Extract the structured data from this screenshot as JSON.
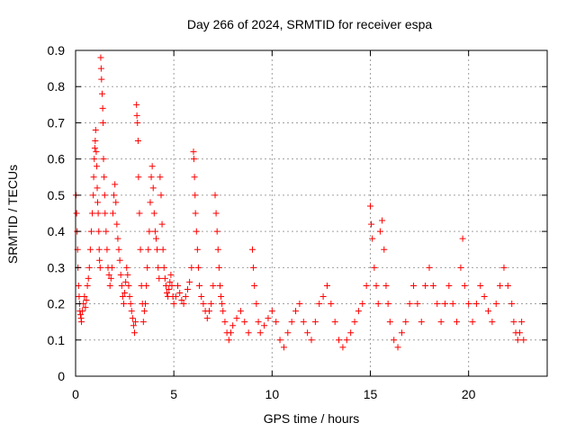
{
  "chart_data": {
    "type": "scatter",
    "title": "Day 266 of 2024, SRMTID for receiver espa",
    "xlabel": "GPS time / hours",
    "ylabel": "SRMTID / TECUs",
    "xlim": [
      0,
      24
    ],
    "ylim": [
      0,
      0.9
    ],
    "x_ticks": [
      0,
      5,
      10,
      15,
      20
    ],
    "x_tick_labels": [
      "0",
      "5",
      "10",
      "15",
      "20"
    ],
    "y_ticks": [
      0,
      0.1,
      0.2,
      0.3,
      0.4,
      0.5,
      0.6,
      0.7,
      0.8,
      0.9
    ],
    "y_tick_labels": [
      "0",
      "0.1",
      "0.2",
      "0.3",
      "0.4",
      "0.5",
      "0.6",
      "0.7",
      "0.8",
      "0.9"
    ],
    "grid": true,
    "marker": "+",
    "color": "#ff0000",
    "series": [
      {
        "name": "SRMTID",
        "points": [
          [
            0.02,
            0.5
          ],
          [
            0.05,
            0.45
          ],
          [
            0.08,
            0.4
          ],
          [
            0.1,
            0.35
          ],
          [
            0.12,
            0.3
          ],
          [
            0.15,
            0.25
          ],
          [
            0.18,
            0.22
          ],
          [
            0.2,
            0.2
          ],
          [
            0.22,
            0.18
          ],
          [
            0.25,
            0.17
          ],
          [
            0.28,
            0.16
          ],
          [
            0.3,
            0.15
          ],
          [
            0.35,
            0.18
          ],
          [
            0.4,
            0.2
          ],
          [
            0.45,
            0.22
          ],
          [
            0.5,
            0.19
          ],
          [
            0.55,
            0.21
          ],
          [
            0.6,
            0.25
          ],
          [
            0.65,
            0.27
          ],
          [
            0.7,
            0.3
          ],
          [
            0.75,
            0.35
          ],
          [
            0.8,
            0.4
          ],
          [
            0.85,
            0.45
          ],
          [
            0.9,
            0.5
          ],
          [
            0.92,
            0.55
          ],
          [
            0.95,
            0.6
          ],
          [
            0.98,
            0.63
          ],
          [
            1.0,
            0.65
          ],
          [
            1.02,
            0.68
          ],
          [
            1.05,
            0.62
          ],
          [
            1.08,
            0.58
          ],
          [
            1.1,
            0.52
          ],
          [
            1.12,
            0.48
          ],
          [
            1.15,
            0.45
          ],
          [
            1.18,
            0.4
          ],
          [
            1.2,
            0.35
          ],
          [
            1.22,
            0.32
          ],
          [
            1.25,
            0.3
          ],
          [
            1.28,
            0.88
          ],
          [
            1.3,
            0.85
          ],
          [
            1.32,
            0.82
          ],
          [
            1.35,
            0.78
          ],
          [
            1.38,
            0.74
          ],
          [
            1.4,
            0.7
          ],
          [
            1.42,
            0.6
          ],
          [
            1.45,
            0.55
          ],
          [
            1.48,
            0.5
          ],
          [
            1.5,
            0.45
          ],
          [
            1.55,
            0.4
          ],
          [
            1.6,
            0.35
          ],
          [
            1.65,
            0.3
          ],
          [
            1.7,
            0.28
          ],
          [
            1.75,
            0.25
          ],
          [
            1.8,
            0.27
          ],
          [
            1.85,
            0.3
          ],
          [
            1.9,
            0.45
          ],
          [
            1.95,
            0.5
          ],
          [
            2.0,
            0.53
          ],
          [
            2.05,
            0.48
          ],
          [
            2.1,
            0.42
          ],
          [
            2.15,
            0.38
          ],
          [
            2.2,
            0.35
          ],
          [
            2.25,
            0.32
          ],
          [
            2.3,
            0.28
          ],
          [
            2.35,
            0.25
          ],
          [
            2.4,
            0.22
          ],
          [
            2.45,
            0.2
          ],
          [
            2.5,
            0.23
          ],
          [
            2.55,
            0.26
          ],
          [
            2.6,
            0.3
          ],
          [
            2.65,
            0.28
          ],
          [
            2.7,
            0.25
          ],
          [
            2.75,
            0.22
          ],
          [
            2.8,
            0.2
          ],
          [
            2.85,
            0.18
          ],
          [
            2.9,
            0.16
          ],
          [
            2.95,
            0.14
          ],
          [
            3.0,
            0.12
          ],
          [
            3.05,
            0.15
          ],
          [
            3.1,
            0.75
          ],
          [
            3.12,
            0.72
          ],
          [
            3.15,
            0.7
          ],
          [
            3.18,
            0.65
          ],
          [
            3.2,
            0.55
          ],
          [
            3.25,
            0.45
          ],
          [
            3.3,
            0.35
          ],
          [
            3.35,
            0.25
          ],
          [
            3.4,
            0.2
          ],
          [
            3.45,
            0.15
          ],
          [
            3.5,
            0.18
          ],
          [
            3.55,
            0.2
          ],
          [
            3.6,
            0.25
          ],
          [
            3.65,
            0.3
          ],
          [
            3.7,
            0.35
          ],
          [
            3.75,
            0.4
          ],
          [
            3.8,
            0.48
          ],
          [
            3.85,
            0.55
          ],
          [
            3.9,
            0.58
          ],
          [
            3.95,
            0.52
          ],
          [
            4.0,
            0.45
          ],
          [
            4.05,
            0.4
          ],
          [
            4.1,
            0.38
          ],
          [
            4.15,
            0.35
          ],
          [
            4.2,
            0.3
          ],
          [
            4.25,
            0.27
          ],
          [
            4.3,
            0.55
          ],
          [
            4.35,
            0.5
          ],
          [
            4.4,
            0.42
          ],
          [
            4.45,
            0.35
          ],
          [
            4.5,
            0.3
          ],
          [
            4.55,
            0.27
          ],
          [
            4.6,
            0.25
          ],
          [
            4.65,
            0.23
          ],
          [
            4.7,
            0.22
          ],
          [
            4.75,
            0.24
          ],
          [
            4.8,
            0.26
          ],
          [
            4.85,
            0.28
          ],
          [
            4.9,
            0.25
          ],
          [
            4.95,
            0.22
          ],
          [
            5.0,
            0.2
          ],
          [
            5.1,
            0.22
          ],
          [
            5.2,
            0.25
          ],
          [
            5.3,
            0.23
          ],
          [
            5.4,
            0.21
          ],
          [
            5.5,
            0.2
          ],
          [
            5.6,
            0.22
          ],
          [
            5.7,
            0.24
          ],
          [
            5.8,
            0.26
          ],
          [
            5.9,
            0.3
          ],
          [
            6.0,
            0.62
          ],
          [
            6.02,
            0.6
          ],
          [
            6.05,
            0.55
          ],
          [
            6.08,
            0.5
          ],
          [
            6.1,
            0.45
          ],
          [
            6.15,
            0.4
          ],
          [
            6.2,
            0.35
          ],
          [
            6.25,
            0.3
          ],
          [
            6.3,
            0.25
          ],
          [
            6.4,
            0.22
          ],
          [
            6.5,
            0.2
          ],
          [
            6.6,
            0.18
          ],
          [
            6.7,
            0.16
          ],
          [
            6.8,
            0.18
          ],
          [
            6.9,
            0.2
          ],
          [
            7.0,
            0.25
          ],
          [
            7.1,
            0.5
          ],
          [
            7.15,
            0.45
          ],
          [
            7.2,
            0.4
          ],
          [
            7.25,
            0.35
          ],
          [
            7.3,
            0.3
          ],
          [
            7.35,
            0.25
          ],
          [
            7.4,
            0.22
          ],
          [
            7.45,
            0.2
          ],
          [
            7.5,
            0.18
          ],
          [
            7.6,
            0.15
          ],
          [
            7.7,
            0.12
          ],
          [
            7.8,
            0.1
          ],
          [
            7.9,
            0.12
          ],
          [
            8.0,
            0.14
          ],
          [
            8.2,
            0.16
          ],
          [
            8.4,
            0.18
          ],
          [
            8.6,
            0.15
          ],
          [
            8.8,
            0.12
          ],
          [
            9.0,
            0.35
          ],
          [
            9.05,
            0.3
          ],
          [
            9.1,
            0.25
          ],
          [
            9.2,
            0.2
          ],
          [
            9.3,
            0.15
          ],
          [
            9.4,
            0.12
          ],
          [
            9.6,
            0.14
          ],
          [
            9.8,
            0.16
          ],
          [
            10.0,
            0.18
          ],
          [
            10.2,
            0.15
          ],
          [
            10.4,
            0.1
          ],
          [
            10.6,
            0.08
          ],
          [
            10.8,
            0.12
          ],
          [
            11.0,
            0.15
          ],
          [
            11.2,
            0.18
          ],
          [
            11.4,
            0.2
          ],
          [
            11.6,
            0.15
          ],
          [
            11.8,
            0.12
          ],
          [
            12.0,
            0.1
          ],
          [
            12.2,
            0.15
          ],
          [
            12.4,
            0.2
          ],
          [
            12.6,
            0.22
          ],
          [
            12.8,
            0.25
          ],
          [
            13.0,
            0.2
          ],
          [
            13.2,
            0.15
          ],
          [
            13.4,
            0.1
          ],
          [
            13.6,
            0.08
          ],
          [
            13.8,
            0.1
          ],
          [
            14.0,
            0.12
          ],
          [
            14.2,
            0.15
          ],
          [
            14.4,
            0.18
          ],
          [
            14.6,
            0.2
          ],
          [
            14.8,
            0.25
          ],
          [
            15.0,
            0.47
          ],
          [
            15.05,
            0.42
          ],
          [
            15.1,
            0.38
          ],
          [
            15.2,
            0.3
          ],
          [
            15.3,
            0.25
          ],
          [
            15.4,
            0.2
          ],
          [
            15.5,
            0.4
          ],
          [
            15.6,
            0.43
          ],
          [
            15.7,
            0.35
          ],
          [
            15.8,
            0.25
          ],
          [
            15.9,
            0.2
          ],
          [
            16.0,
            0.15
          ],
          [
            16.2,
            0.1
          ],
          [
            16.4,
            0.08
          ],
          [
            16.6,
            0.12
          ],
          [
            16.8,
            0.15
          ],
          [
            17.0,
            0.2
          ],
          [
            17.2,
            0.25
          ],
          [
            17.4,
            0.2
          ],
          [
            17.6,
            0.15
          ],
          [
            17.8,
            0.25
          ],
          [
            18.0,
            0.3
          ],
          [
            18.2,
            0.25
          ],
          [
            18.4,
            0.2
          ],
          [
            18.6,
            0.15
          ],
          [
            18.8,
            0.2
          ],
          [
            19.0,
            0.25
          ],
          [
            19.2,
            0.2
          ],
          [
            19.4,
            0.15
          ],
          [
            19.6,
            0.3
          ],
          [
            19.7,
            0.38
          ],
          [
            19.8,
            0.25
          ],
          [
            20.0,
            0.2
          ],
          [
            20.2,
            0.15
          ],
          [
            20.4,
            0.2
          ],
          [
            20.6,
            0.25
          ],
          [
            20.8,
            0.22
          ],
          [
            21.0,
            0.18
          ],
          [
            21.2,
            0.15
          ],
          [
            21.4,
            0.2
          ],
          [
            21.6,
            0.25
          ],
          [
            21.8,
            0.3
          ],
          [
            22.0,
            0.25
          ],
          [
            22.2,
            0.2
          ],
          [
            22.3,
            0.15
          ],
          [
            22.4,
            0.12
          ],
          [
            22.5,
            0.1
          ],
          [
            22.6,
            0.12
          ],
          [
            22.7,
            0.15
          ],
          [
            22.8,
            0.1
          ]
        ]
      }
    ]
  }
}
